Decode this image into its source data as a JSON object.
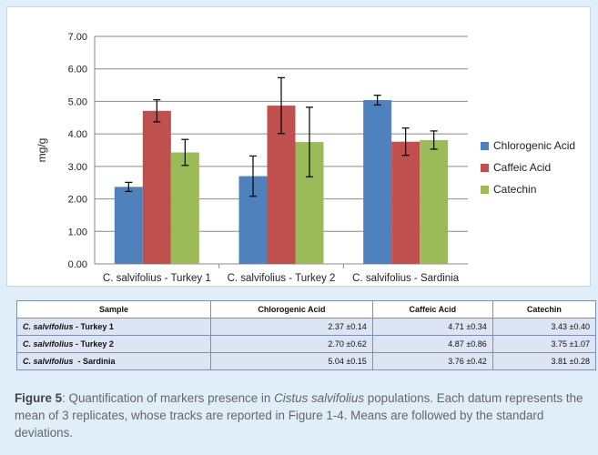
{
  "chart_data": {
    "type": "bar",
    "categories": [
      "C. salvifolius - Turkey 1",
      "C. salvifolius - Turkey 2",
      "C. salvifolius  - Sardinia"
    ],
    "series": [
      {
        "name": "Chlorogenic Acid",
        "color": "#4f81bd",
        "values": [
          2.37,
          2.7,
          5.04
        ],
        "errors": [
          0.14,
          0.62,
          0.15
        ]
      },
      {
        "name": "Caffeic Acid",
        "color": "#c0504d",
        "values": [
          4.71,
          4.87,
          3.76
        ],
        "errors": [
          0.34,
          0.86,
          0.42
        ]
      },
      {
        "name": "Catechin",
        "color": "#9bbb59",
        "values": [
          3.43,
          3.75,
          3.81
        ],
        "errors": [
          0.4,
          1.07,
          0.28
        ]
      }
    ],
    "ylabel": "mg/g",
    "ylim": [
      0,
      7
    ],
    "yticks": [
      "0.00",
      "1.00",
      "2.00",
      "3.00",
      "4.00",
      "5.00",
      "6.00",
      "7.00"
    ],
    "grid": true,
    "legend": "right"
  },
  "table": {
    "headers": [
      "Sample",
      "Chlorogenic Acid",
      "Caffeic Acid",
      "Catechin"
    ],
    "rows": [
      {
        "species": "C. salvifolius",
        "site": " - Turkey 1",
        "values": [
          "2.37 ±0.14",
          "4.71 ±0.34",
          "3.43 ±0.40"
        ]
      },
      {
        "species": "C. salvifolius",
        "site": " - Turkey 2",
        "values": [
          "2.70 ±0.62",
          "4.87 ±0.86",
          "3.75 ±1.07"
        ]
      },
      {
        "species": "C. salvifolius",
        "site": "  - Sardinia",
        "values": [
          "5.04 ±0.15",
          "3.76 ±0.42",
          "3.81 ±0.28"
        ]
      }
    ]
  },
  "caption": {
    "label": "Figure 5",
    "text_before": ": Quantification of markers presence in ",
    "species": "Cistus salvifolius",
    "text_after": " populations. Each datum represents the mean of 3 replicates, whose tracks are reported in Figure 1-4. Means are followed by the standard deviations."
  }
}
